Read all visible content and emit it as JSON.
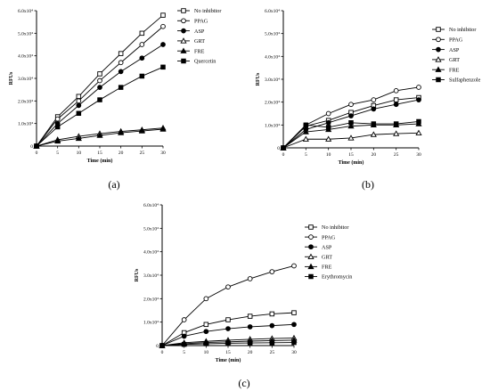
{
  "chart_data": [
    {
      "type": "line",
      "panel_label": "(a)",
      "xlabel": "Time (min)",
      "ylabel": "RFUs",
      "x": [
        0,
        5,
        10,
        15,
        20,
        25,
        30
      ],
      "x_ticks": [
        "0",
        "5",
        "10",
        "15",
        "20",
        "25",
        "30"
      ],
      "xlim": [
        0,
        30
      ],
      "ylim": [
        0,
        60000
      ],
      "y_ticks": [
        {
          "value": 0,
          "label": "0"
        },
        {
          "value": 10000,
          "label": "1.0x10⁴"
        },
        {
          "value": 20000,
          "label": "2.0x10⁴"
        },
        {
          "value": 30000,
          "label": "3.0x10⁴"
        },
        {
          "value": 40000,
          "label": "4.0x10⁴"
        },
        {
          "value": 50000,
          "label": "5.0x10⁴"
        },
        {
          "value": 60000,
          "label": "6.0x10⁴"
        }
      ],
      "legend_position": "top-right",
      "series": [
        {
          "name": "No inhibitor",
          "marker": "square-open",
          "values": [
            0,
            13000,
            22000,
            32000,
            41000,
            50000,
            58000
          ]
        },
        {
          "name": "PPAG",
          "marker": "circle-open",
          "values": [
            0,
            12000,
            20000,
            29000,
            37000,
            45000,
            53000
          ]
        },
        {
          "name": "ASP",
          "marker": "circle-filled",
          "values": [
            0,
            10000,
            18000,
            26000,
            33000,
            39000,
            45000
          ]
        },
        {
          "name": "GRT",
          "marker": "triangle-open",
          "values": [
            0,
            2800,
            4300,
            5500,
            6500,
            7200,
            8000
          ]
        },
        {
          "name": "FRE",
          "marker": "triangle-filled",
          "values": [
            0,
            2200,
            3400,
            4700,
            5900,
            6700,
            7500
          ]
        },
        {
          "name": "Quercetin",
          "marker": "square-filled",
          "values": [
            0,
            8500,
            14500,
            20500,
            26000,
            31000,
            35000
          ]
        }
      ]
    },
    {
      "type": "line",
      "panel_label": "(b)",
      "xlabel": "Time (min)",
      "ylabel": "RFUs",
      "x": [
        0,
        5,
        10,
        15,
        20,
        25,
        30
      ],
      "x_ticks": [
        "0",
        "5",
        "10",
        "15",
        "20",
        "25",
        "30"
      ],
      "xlim": [
        0,
        30
      ],
      "ylim": [
        0,
        60000
      ],
      "y_ticks": [
        {
          "value": 0,
          "label": "0"
        },
        {
          "value": 10000,
          "label": "1.0x10⁴"
        },
        {
          "value": 20000,
          "label": "2.0x10⁴"
        },
        {
          "value": 30000,
          "label": "3.0x10⁴"
        },
        {
          "value": 40000,
          "label": "4.0x10⁴"
        },
        {
          "value": 50000,
          "label": "5.0x10⁴"
        },
        {
          "value": 60000,
          "label": "6.0x10⁴"
        }
      ],
      "legend_position": "top-right",
      "series": [
        {
          "name": "No inhibitor",
          "marker": "square-open",
          "values": [
            0,
            9500,
            12000,
            15500,
            18500,
            21000,
            22000
          ]
        },
        {
          "name": "PPAG",
          "marker": "circle-open",
          "values": [
            0,
            10000,
            15000,
            19000,
            21000,
            25000,
            26500
          ]
        },
        {
          "name": "ASP",
          "marker": "circle-filled",
          "values": [
            0,
            8000,
            11000,
            14000,
            17000,
            19000,
            21000
          ]
        },
        {
          "name": "GRT",
          "marker": "triangle-open",
          "values": [
            0,
            3800,
            3800,
            4300,
            5800,
            6200,
            6500
          ]
        },
        {
          "name": "FRE",
          "marker": "triangle-filled",
          "values": [
            0,
            7000,
            8000,
            9500,
            10000,
            10000,
            10500
          ]
        },
        {
          "name": "Sulfaphenzole",
          "marker": "square-filled",
          "values": [
            0,
            10000,
            9000,
            11000,
            10500,
            10500,
            11500
          ]
        }
      ]
    },
    {
      "type": "line",
      "panel_label": "(c)",
      "xlabel": "Time (min)",
      "ylabel": "RFUs",
      "x": [
        0,
        5,
        10,
        15,
        20,
        25,
        30
      ],
      "x_ticks": [
        "0",
        "5",
        "10",
        "15",
        "20",
        "25",
        "30"
      ],
      "xlim": [
        0,
        30
      ],
      "ylim": [
        0,
        60000
      ],
      "y_ticks": [
        {
          "value": 0,
          "label": "0"
        },
        {
          "value": 10000,
          "label": "1.0x10⁴"
        },
        {
          "value": 20000,
          "label": "2.0x10⁴"
        },
        {
          "value": 30000,
          "label": "3.0x10⁴"
        },
        {
          "value": 40000,
          "label": "4.0x10⁴"
        },
        {
          "value": 50000,
          "label": "5.0x10⁴"
        },
        {
          "value": 60000,
          "label": "6.0x10⁴"
        }
      ],
      "legend_position": "top-right",
      "series": [
        {
          "name": "No inhibitor",
          "marker": "square-open",
          "values": [
            0,
            5500,
            9000,
            11000,
            12500,
            13500,
            14000
          ]
        },
        {
          "name": "PPAG",
          "marker": "circle-open",
          "values": [
            0,
            11000,
            20000,
            25000,
            28500,
            31500,
            34000
          ]
        },
        {
          "name": "ASP",
          "marker": "circle-filled",
          "values": [
            0,
            4000,
            6000,
            7200,
            8000,
            8500,
            9000
          ]
        },
        {
          "name": "GRT",
          "marker": "triangle-open",
          "values": [
            0,
            1200,
            1800,
            2300,
            2700,
            3000,
            3200
          ]
        },
        {
          "name": "FRE",
          "marker": "triangle-filled",
          "values": [
            0,
            800,
            1300,
            1600,
            1900,
            2100,
            2300
          ]
        },
        {
          "name": "Erythromycin",
          "marker": "square-filled",
          "values": [
            0,
            500,
            800,
            1000,
            1100,
            1200,
            1300
          ]
        }
      ]
    }
  ]
}
